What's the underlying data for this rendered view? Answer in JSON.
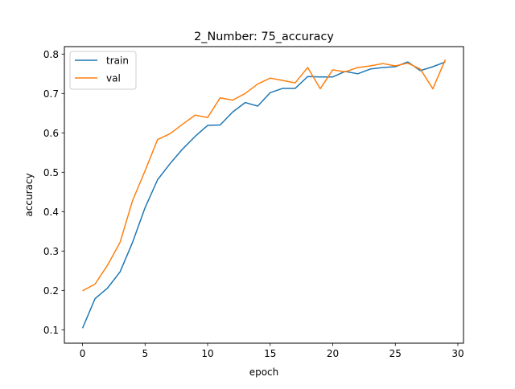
{
  "chart_data": {
    "type": "line",
    "title": "2_Number: 75_accuracy",
    "xlabel": "epoch",
    "ylabel": "accuracy",
    "xlim": [
      -1.45,
      30.45
    ],
    "ylim": [
      0.066,
      0.819
    ],
    "xticks": [
      0,
      5,
      10,
      15,
      20,
      25,
      30
    ],
    "yticks": [
      0.1,
      0.2,
      0.3,
      0.4,
      0.5,
      0.6,
      0.7,
      0.8
    ],
    "grid": false,
    "legend_position": "upper-left",
    "x": [
      0,
      1,
      2,
      3,
      4,
      5,
      6,
      7,
      8,
      9,
      10,
      11,
      12,
      13,
      14,
      15,
      16,
      17,
      18,
      19,
      20,
      21,
      22,
      23,
      24,
      25,
      26,
      27,
      28,
      29
    ],
    "series": [
      {
        "name": "train",
        "color": "#1f77b4",
        "values": [
          0.104,
          0.179,
          0.206,
          0.247,
          0.322,
          0.41,
          0.481,
          0.522,
          0.559,
          0.591,
          0.619,
          0.62,
          0.653,
          0.677,
          0.668,
          0.702,
          0.713,
          0.713,
          0.743,
          0.742,
          0.742,
          0.756,
          0.75,
          0.762,
          0.766,
          0.768,
          0.78,
          0.758,
          0.768,
          0.78
        ]
      },
      {
        "name": "val",
        "color": "#ff7f0e",
        "values": [
          0.199,
          0.216,
          0.264,
          0.322,
          0.428,
          0.504,
          0.583,
          0.598,
          0.622,
          0.645,
          0.639,
          0.689,
          0.683,
          0.7,
          0.724,
          0.739,
          0.733,
          0.727,
          0.766,
          0.712,
          0.76,
          0.755,
          0.766,
          0.77,
          0.776,
          0.77,
          0.777,
          0.762,
          0.712,
          0.786
        ]
      }
    ]
  }
}
